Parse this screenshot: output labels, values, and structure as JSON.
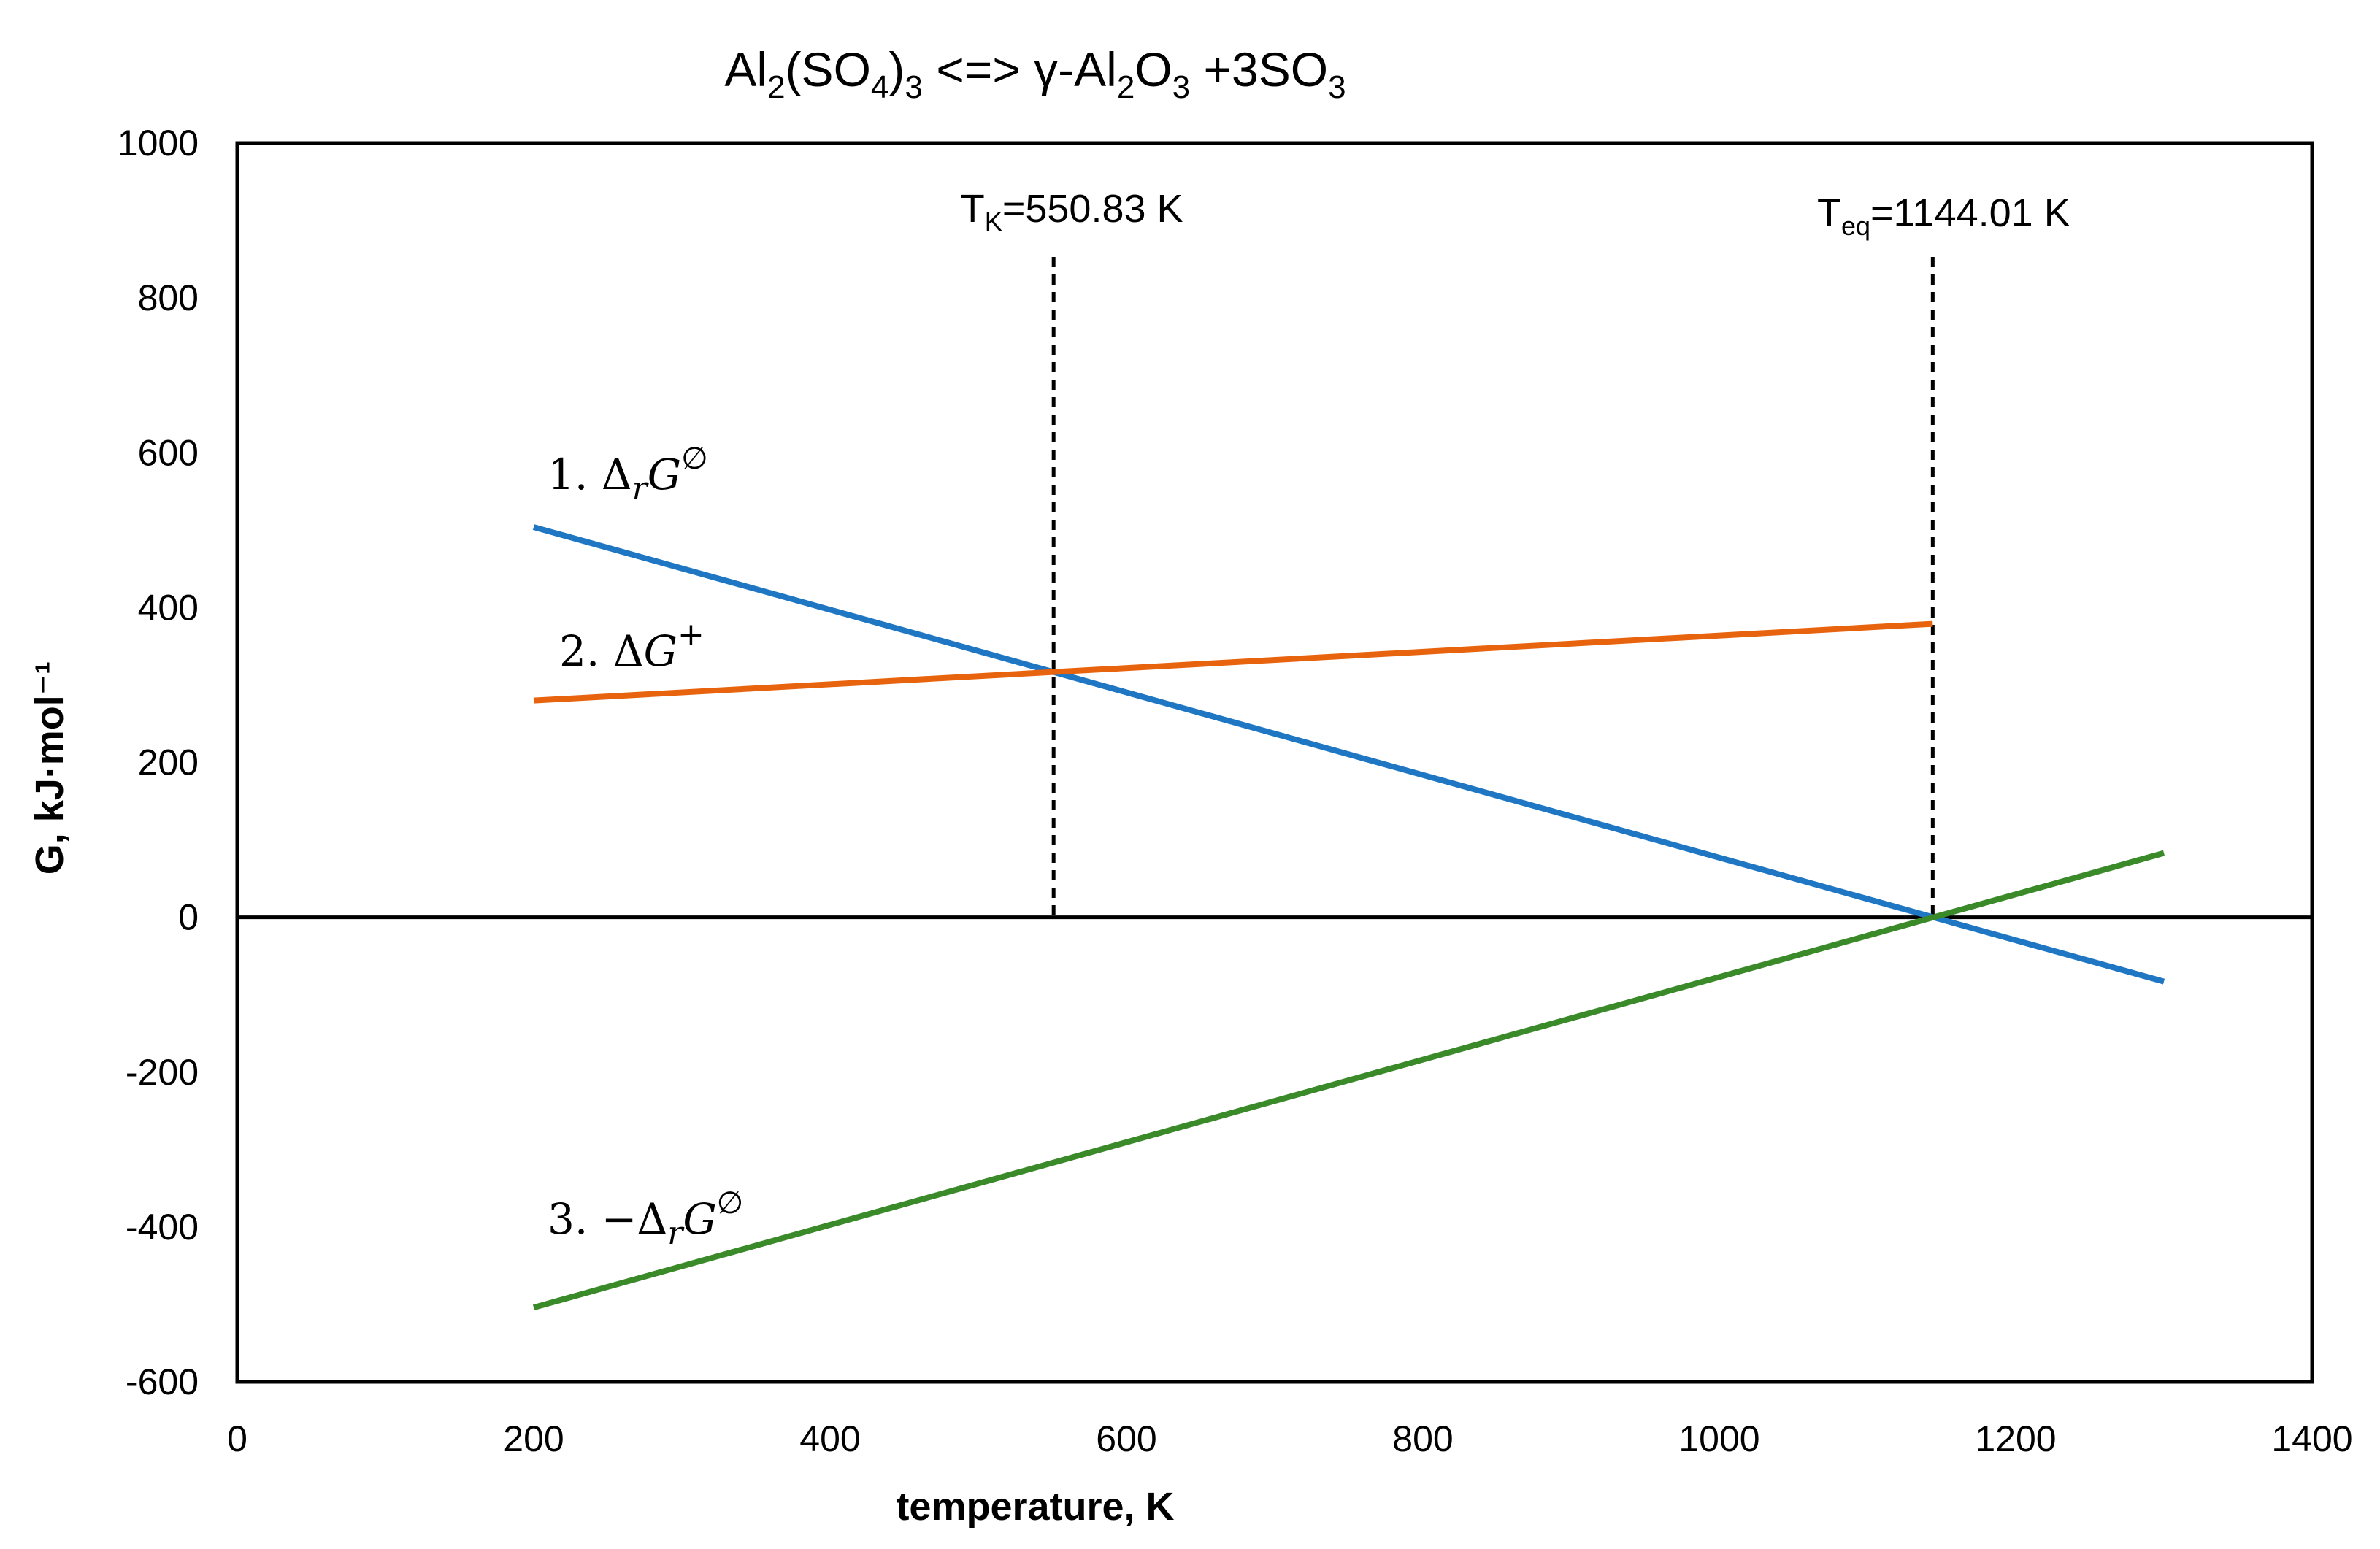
{
  "chart_data": {
    "type": "line",
    "title": {
      "base": "Al",
      "sub1": "2",
      "mid1": "(SO",
      "sub2": "4",
      "mid2": ")",
      "sub3": "3",
      "mid3": " <=> γ-Al",
      "sub4": "2",
      "mid4": "O",
      "sub5": "3",
      "tail": " +3SO",
      "sub6": "3"
    },
    "xlabel": "temperature, K",
    "ylabel": "G, kJ·mol⁻¹",
    "xlim": [
      0,
      1400
    ],
    "ylim": [
      -600,
      1000
    ],
    "x_ticks": [
      0,
      200,
      400,
      600,
      800,
      1000,
      1200,
      1400
    ],
    "y_ticks": [
      1000,
      800,
      600,
      400,
      200,
      0,
      -200,
      -400,
      -600
    ],
    "x_tick_labels": [
      "0",
      "200",
      "400",
      "600",
      "800",
      "1000",
      "1200",
      "1400"
    ],
    "y_tick_labels": [
      "1000",
      "800",
      "600",
      "400",
      "200",
      "0",
      "-200",
      "-400",
      "-600"
    ],
    "grid": false,
    "series": [
      {
        "name": "1. ΔrGØ",
        "label": {
          "num": "1. ",
          "delta": "Δ",
          "sub": "r",
          "var": "G",
          "sup": "∅"
        },
        "color": "#1f77c4",
        "x": [
          200,
          1300
        ],
        "y": [
          504,
          -83
        ]
      },
      {
        "name": "2. ΔG+",
        "label": {
          "num": "2. ",
          "delta": "Δ",
          "sub": "",
          "var": "G",
          "sup": "+"
        },
        "color": "#e8630e",
        "x": [
          200,
          1144.01
        ],
        "y": [
          280,
          379
        ]
      },
      {
        "name": "3. −ΔrGØ",
        "label": {
          "num": "3. −",
          "delta": "Δ",
          "sub": "r",
          "var": "G",
          "sup": "∅"
        },
        "color": "#3a8a2a",
        "x": [
          200,
          1300
        ],
        "y": [
          -504,
          83
        ]
      }
    ],
    "reference_lines": [
      {
        "axis": "y",
        "value": 0,
        "color": "#000000",
        "style": "solid"
      },
      {
        "axis": "x",
        "value": 550.83,
        "color": "#000000",
        "style": "dashed",
        "label_main": "T",
        "label_sub": "K",
        "label_tail": "=550.83 K"
      },
      {
        "axis": "x",
        "value": 1144.01,
        "color": "#000000",
        "style": "dashed",
        "label_main": "T",
        "label_sub": "eq",
        "label_tail": "=1144.01 K"
      }
    ]
  }
}
